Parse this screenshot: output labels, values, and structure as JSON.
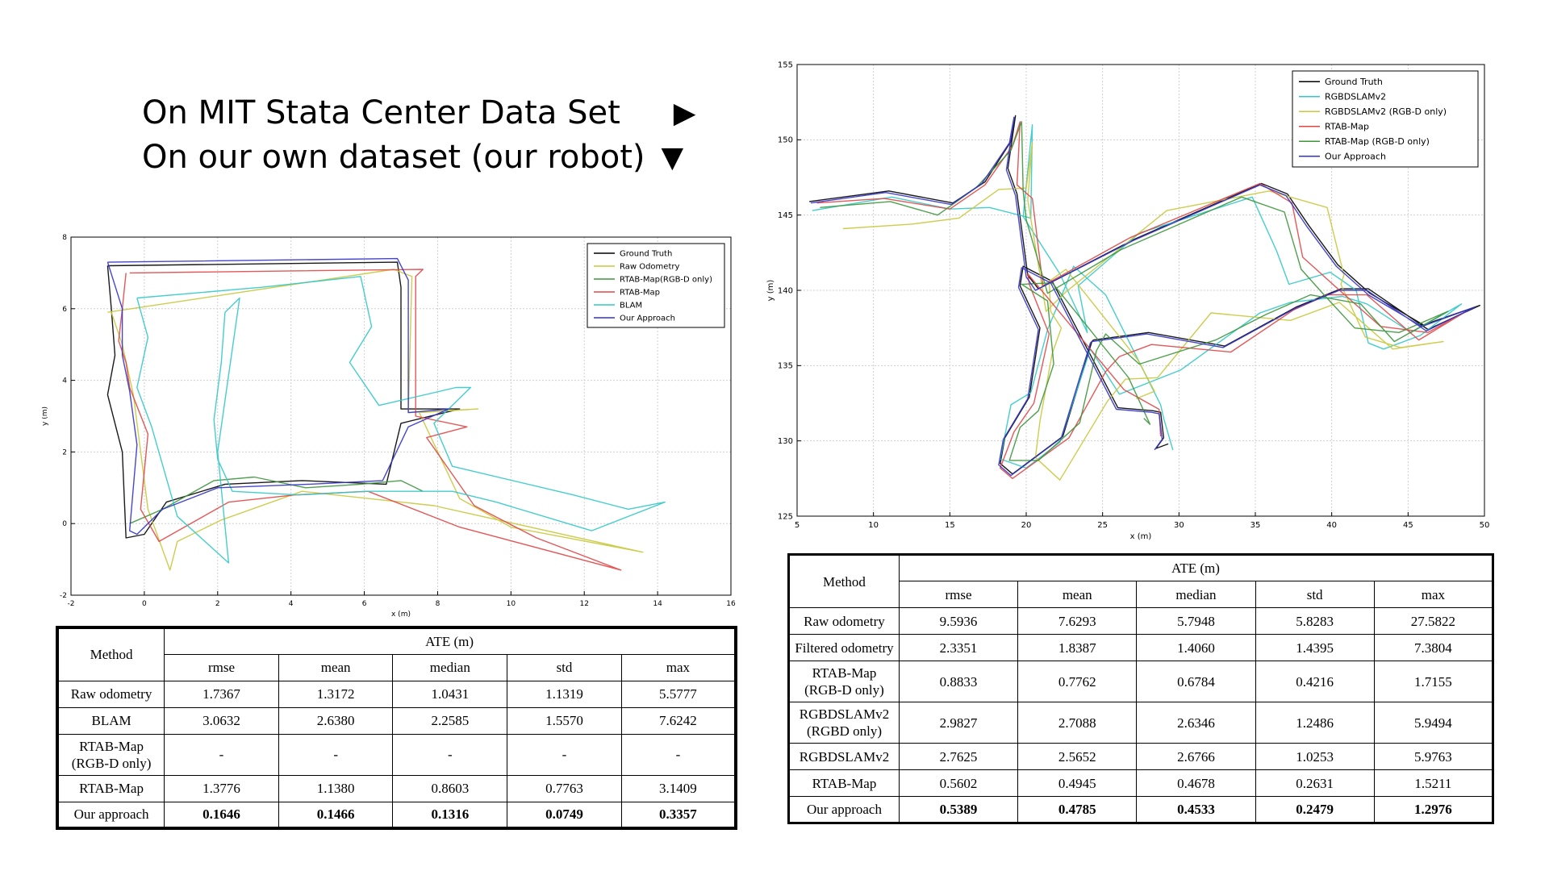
{
  "headline": {
    "line1": "On MIT Stata Center Data Set",
    "arrow1": "▶",
    "line2": "On our own dataset (our robot)",
    "arrow2": "▼"
  },
  "chart_data": [
    {
      "type": "line",
      "xlabel": "x (m)",
      "ylabel": "y (m)",
      "xlim": [
        -2,
        16
      ],
      "ylim": [
        -2,
        8
      ],
      "xticks": [
        -2,
        0,
        2,
        4,
        6,
        8,
        10,
        12,
        14,
        16
      ],
      "yticks": [
        -2,
        0,
        2,
        4,
        6,
        8
      ],
      "grid": true,
      "legend_position": "top-right",
      "series": [
        {
          "name": "Ground Truth",
          "color": "#000000",
          "x": [
            -1.0,
            6.9,
            7.0,
            7.0,
            8.6,
            7.0,
            6.6,
            4.3,
            2.2,
            0.6,
            0.0,
            -0.5,
            -0.6,
            -1.0,
            -0.8,
            -0.9,
            -1.0
          ],
          "y": [
            7.2,
            7.3,
            6.6,
            3.2,
            3.2,
            2.8,
            1.1,
            1.2,
            1.1,
            0.6,
            -0.3,
            -0.4,
            2.0,
            3.6,
            4.7,
            6.0,
            7.2
          ]
        },
        {
          "name": "Raw Odometry",
          "color": "#c8c83c",
          "x": [
            -1.0,
            6.8,
            7.3,
            7.2,
            9.1,
            7.5,
            8.6,
            10.0,
            13.6,
            7.9,
            4.3,
            2.1,
            0.9,
            0.7,
            0.1,
            -0.3,
            -0.6,
            -0.9
          ],
          "y": [
            5.9,
            7.1,
            6.9,
            3.1,
            3.2,
            3.1,
            0.7,
            -0.1,
            -0.8,
            0.5,
            0.9,
            0.1,
            -0.5,
            -1.3,
            0.4,
            3.6,
            5.0,
            5.9
          ]
        },
        {
          "name": "RTAB-Map(RGB-D only)",
          "color": "#3c963c",
          "x": [
            -0.4,
            0.5,
            1.9,
            3.0,
            4.4,
            5.9,
            7.0,
            7.6
          ],
          "y": [
            0.0,
            0.4,
            1.2,
            1.3,
            1.0,
            1.1,
            1.2,
            0.9
          ]
        },
        {
          "name": "RTAB-Map",
          "color": "#e04646",
          "x": [
            -0.4,
            7.6,
            7.4,
            7.4,
            8.8,
            7.7,
            9.0,
            10.7,
            13.0,
            8.6,
            6.1,
            4.1,
            2.3,
            0.4,
            -0.1,
            0.1,
            -0.4,
            -0.5,
            -0.7,
            -0.6,
            -0.5
          ],
          "y": [
            7.0,
            7.1,
            6.9,
            3.0,
            2.7,
            2.4,
            0.5,
            -0.4,
            -1.3,
            -0.1,
            0.9,
            0.8,
            0.6,
            -0.5,
            0.4,
            2.5,
            3.8,
            4.5,
            5.1,
            6.0,
            7.0
          ]
        },
        {
          "name": "BLAM",
          "color": "#32c8c8",
          "x": [
            -0.2,
            3.2,
            5.9,
            6.2,
            5.6,
            6.4,
            8.5,
            8.9,
            7.9,
            8.4,
            11.7,
            13.2,
            14.2,
            12.2,
            9.6,
            8.4,
            6.1,
            4.2,
            2.4,
            2.0,
            1.9,
            2.1,
            2.2,
            2.6,
            2.0,
            2.3,
            0.9,
            0.2,
            -0.2,
            0.1,
            -0.2
          ],
          "y": [
            6.3,
            6.6,
            6.9,
            5.5,
            4.5,
            3.3,
            3.8,
            3.8,
            2.8,
            1.6,
            0.8,
            0.4,
            0.6,
            -0.2,
            0.6,
            0.9,
            0.9,
            0.8,
            0.9,
            1.8,
            2.9,
            4.5,
            5.9,
            6.3,
            2.0,
            -1.1,
            0.2,
            2.7,
            3.8,
            5.2,
            6.3
          ]
        },
        {
          "name": "Our Approach",
          "color": "#3232c8",
          "x": [
            -1.0,
            6.9,
            7.2,
            7.2,
            8.3,
            7.2,
            6.5,
            4.5,
            2.0,
            0.5,
            -0.2,
            -0.4,
            -0.2,
            -0.4,
            -0.6,
            -0.6,
            -1.0
          ],
          "y": [
            7.3,
            7.4,
            6.8,
            3.1,
            3.2,
            2.7,
            1.2,
            1.1,
            1.0,
            0.4,
            -0.3,
            -0.2,
            2.2,
            3.7,
            4.7,
            6.0,
            7.3
          ]
        }
      ]
    },
    {
      "type": "line",
      "xlabel": "x (m)",
      "ylabel": "y (m)",
      "xlim": [
        5,
        50
      ],
      "ylim": [
        125,
        155
      ],
      "xticks": [
        5,
        10,
        15,
        20,
        25,
        30,
        35,
        40,
        45,
        50
      ],
      "yticks": [
        125,
        130,
        135,
        140,
        145,
        150,
        155
      ],
      "grid": true,
      "legend_position": "top-right",
      "series": [
        {
          "name": "Ground Truth",
          "color": "#000000",
          "x": [
            5.8,
            11.0,
            15.2,
            17.3,
            19.0,
            19.3,
            18.8,
            19.4,
            20.1,
            20.8,
            27.1,
            35.4,
            37.1,
            38.5,
            40.4,
            42.5,
            46.0,
            49.7,
            46.3,
            42.4,
            40.6,
            37.7,
            33.0,
            28.0,
            24.4,
            24.3,
            22.4,
            19.1,
            18.3,
            18.6,
            20.2,
            20.9,
            19.6,
            19.8,
            21.7,
            26.0,
            28.3,
            28.8,
            29.0,
            28.5,
            29.3
          ],
          "y": [
            145.9,
            146.6,
            145.8,
            147.2,
            149.9,
            151.6,
            148.1,
            146.4,
            141.0,
            140.1,
            143.4,
            147.1,
            146.4,
            144.3,
            141.7,
            139.8,
            137.7,
            139.0,
            137.4,
            140.1,
            140.1,
            138.9,
            136.3,
            137.2,
            136.7,
            136.6,
            130.3,
            127.8,
            128.5,
            130.2,
            132.9,
            137.5,
            140.3,
            141.6,
            140.6,
            132.2,
            132.0,
            131.9,
            130.2,
            129.5,
            129.8
          ]
        },
        {
          "name": "RGBDSLAMv2",
          "color": "#32c8c8",
          "x": [
            6.0,
            11.2,
            15.0,
            17.6,
            20.3,
            20.4,
            19.8,
            22.2,
            24.0,
            23.4,
            27.4,
            34.8,
            36.4,
            37.2,
            39.9,
            41.6,
            42.4,
            43.4,
            45.8,
            48.5,
            45.2,
            42.3,
            40.7,
            37.3,
            35.3,
            30.1,
            26.1,
            24.2,
            22.2,
            20.0,
            18.3,
            19.0,
            20.3,
            21.4,
            22.1,
            23.1,
            25.2,
            28.8,
            29.0,
            29.6
          ],
          "y": [
            145.3,
            146.2,
            145.4,
            145.5,
            144.8,
            151.0,
            144.9,
            141.1,
            137.2,
            140.3,
            143.8,
            146.2,
            142.6,
            140.4,
            141.2,
            140.0,
            136.5,
            136.1,
            137.0,
            139.1,
            137.2,
            139.1,
            139.6,
            139.2,
            138.5,
            134.7,
            133.1,
            136.1,
            129.9,
            128.2,
            128.8,
            132.4,
            133.2,
            137.4,
            139.1,
            141.6,
            139.7,
            132.4,
            131.5,
            129.4
          ]
        },
        {
          "name": "RGBDSLAMv2 (RGB-D only)",
          "color": "#c8c83c",
          "x": [
            8.0,
            12.5,
            15.6,
            18.2,
            20.0,
            20.4,
            20.1,
            21.3,
            22.6,
            29.2,
            35.9,
            39.7,
            40.8,
            40.6,
            42.2,
            44.5,
            47.3,
            44.0,
            40.5,
            37.3,
            32.1,
            28.6,
            26.5,
            25.3,
            22.2,
            20.6,
            20.9,
            21.7,
            22.3,
            21.6,
            21.5,
            22.6,
            27.3,
            28.4,
            27.2
          ],
          "y": [
            144.1,
            144.4,
            144.8,
            146.7,
            146.8,
            149.8,
            146.0,
            138.6,
            139.9,
            145.3,
            146.6,
            145.5,
            141.0,
            140.4,
            136.9,
            136.2,
            136.6,
            136.1,
            139.2,
            138.0,
            138.5,
            134.2,
            134.1,
            132.6,
            127.4,
            128.9,
            131.3,
            135.8,
            137.5,
            138.6,
            140.6,
            141.4,
            135.4,
            133.3,
            132.8
          ]
        },
        {
          "name": "RTAB-Map",
          "color": "#e04646",
          "x": [
            6.3,
            10.7,
            15.0,
            17.3,
            19.1,
            19.6,
            19.4,
            20.4,
            21.1,
            26.8,
            35.3,
            37.4,
            38.1,
            40.3,
            43.2,
            46.3,
            48.8,
            45.7,
            42.3,
            39.7,
            37.5,
            33.4,
            28.2,
            26.1,
            25.2,
            22.8,
            19.1,
            18.3,
            19.2,
            20.5,
            21.5,
            20.2,
            20.1,
            26.4,
            28.7,
            28.8
          ],
          "y": [
            145.8,
            146.1,
            145.4,
            147.0,
            149.6,
            151.2,
            147.0,
            146.1,
            140.3,
            143.5,
            147.1,
            145.8,
            142.2,
            140.2,
            137.6,
            137.2,
            138.6,
            136.7,
            139.7,
            139.7,
            138.7,
            135.9,
            136.4,
            135.6,
            134.6,
            130.2,
            127.5,
            128.2,
            130.6,
            132.5,
            137.1,
            140.4,
            141.1,
            133.4,
            132.1,
            130.3
          ]
        },
        {
          "name": "RTAB-Map (RGB-D only)",
          "color": "#3c963c",
          "x": [
            6.5,
            11.1,
            14.2,
            16.7,
            19.0,
            19.7,
            19.8,
            20.0,
            21.4,
            26.2,
            34.1,
            36.9,
            38.0,
            39.5,
            41.5,
            44.4,
            47.6,
            44.1,
            41.9,
            38.6,
            35.7,
            32.4,
            27.4,
            25.2,
            24.6,
            23.5,
            20.8,
            18.9,
            19.6,
            20.8,
            21.8,
            21.4,
            19.7,
            21.7,
            26.7,
            28.1,
            27.7
          ],
          "y": [
            145.5,
            145.9,
            145.0,
            146.8,
            149.3,
            151.2,
            146.6,
            144.7,
            139.8,
            142.7,
            146.2,
            145.2,
            141.4,
            139.7,
            137.5,
            137.2,
            138.6,
            136.6,
            139.1,
            139.7,
            138.4,
            136.7,
            135.1,
            137.1,
            136.0,
            131.2,
            128.7,
            128.7,
            130.9,
            132.0,
            135.1,
            139.3,
            140.4,
            140.5,
            134.2,
            131.1,
            131.5
          ]
        },
        {
          "name": "Our Approach",
          "color": "#3232c8",
          "x": [
            5.9,
            10.8,
            15.1,
            17.1,
            18.9,
            19.2,
            18.7,
            19.3,
            20.0,
            20.6,
            27.0,
            35.3,
            37.0,
            38.4,
            40.3,
            42.4,
            45.9,
            49.4,
            46.2,
            42.3,
            40.5,
            37.6,
            32.9,
            27.9,
            24.3,
            24.2,
            22.3,
            19.0,
            18.2,
            18.5,
            20.1,
            20.8,
            19.5,
            19.7,
            21.6,
            25.9,
            28.2,
            28.7,
            28.9,
            28.4
          ],
          "y": [
            145.8,
            146.5,
            145.7,
            147.1,
            149.8,
            151.5,
            148.0,
            146.3,
            140.9,
            140.0,
            143.3,
            147.0,
            146.3,
            144.2,
            141.6,
            139.7,
            137.6,
            138.9,
            137.3,
            140.0,
            140.0,
            138.8,
            136.2,
            137.1,
            136.6,
            136.5,
            130.2,
            127.7,
            128.4,
            130.1,
            132.8,
            137.4,
            140.2,
            141.5,
            140.5,
            132.1,
            131.9,
            131.8,
            130.1,
            129.4
          ]
        }
      ]
    },
    {
      "type": "table",
      "ate_label": "ATE (m)",
      "method_label": "Method",
      "columns": [
        "rmse",
        "mean",
        "median",
        "std",
        "max"
      ],
      "rows": [
        {
          "method": "Raw odometry",
          "values": [
            "1.7367",
            "1.3172",
            "1.0431",
            "1.1319",
            "5.5777"
          ]
        },
        {
          "method": "BLAM",
          "values": [
            "3.0632",
            "2.6380",
            "2.2585",
            "1.5570",
            "7.6242"
          ]
        },
        {
          "method": "RTAB-Map\n(RGB-D only)",
          "values": [
            "-",
            "-",
            "-",
            "-",
            "-"
          ]
        },
        {
          "method": "RTAB-Map",
          "values": [
            "1.3776",
            "1.1380",
            "0.8603",
            "0.7763",
            "3.1409"
          ]
        },
        {
          "method": "Our approach",
          "values": [
            "0.1646",
            "0.1466",
            "0.1316",
            "0.0749",
            "0.3357"
          ]
        }
      ]
    },
    {
      "type": "table",
      "ate_label": "ATE (m)",
      "method_label": "Method",
      "columns": [
        "rmse",
        "mean",
        "median",
        "std",
        "max"
      ],
      "rows": [
        {
          "method": "Raw odometry",
          "values": [
            "9.5936",
            "7.6293",
            "5.7948",
            "5.8283",
            "27.5822"
          ]
        },
        {
          "method": "Filtered odometry",
          "values": [
            "2.3351",
            "1.8387",
            "1.4060",
            "1.4395",
            "7.3804"
          ]
        },
        {
          "method": "RTAB-Map\n(RGB-D only)",
          "values": [
            "0.8833",
            "0.7762",
            "0.6784",
            "0.4216",
            "1.7155"
          ]
        },
        {
          "method": "RGBDSLAMv2\n(RGBD only)",
          "values": [
            "2.9827",
            "2.7088",
            "2.6346",
            "1.2486",
            "5.9494"
          ]
        },
        {
          "method": "RGBDSLAMv2",
          "values": [
            "2.7625",
            "2.5652",
            "2.6766",
            "1.0253",
            "5.9763"
          ]
        },
        {
          "method": "RTAB-Map",
          "values": [
            "0.5602",
            "0.4945",
            "0.4678",
            "0.2631",
            "1.5211"
          ]
        },
        {
          "method": "Our approach",
          "values": [
            "0.5389",
            "0.4785",
            "0.4533",
            "0.2479",
            "1.2976"
          ]
        }
      ]
    }
  ]
}
